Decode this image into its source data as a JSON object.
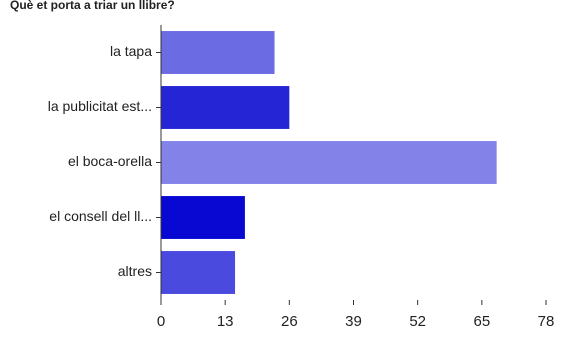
{
  "chart_data": {
    "type": "bar",
    "orientation": "horizontal",
    "title": "Què et porta a triar un llibre?",
    "categories": [
      "la tapa",
      "la publicitat est...",
      "el boca-orella",
      "el consell del ll...",
      "altres"
    ],
    "values": [
      23,
      26,
      68,
      17,
      15
    ],
    "colors": [
      "#6b6be3",
      "#2525d6",
      "#8282e8",
      "#0808d2",
      "#4a4adf"
    ],
    "xlim": [
      0,
      78
    ],
    "xticks": [
      0,
      13,
      26,
      39,
      52,
      65,
      78
    ]
  }
}
